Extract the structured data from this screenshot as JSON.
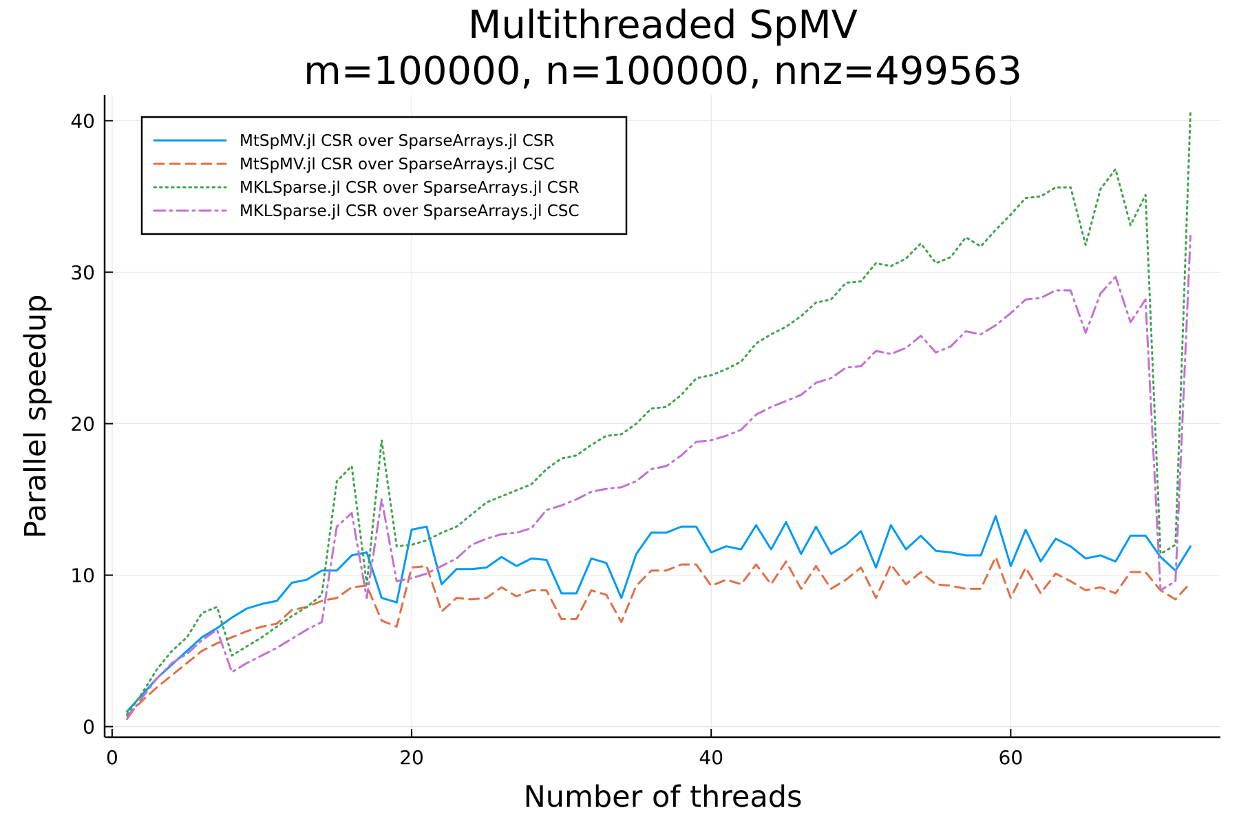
{
  "chart_data": {
    "type": "line",
    "title": "Multithreaded SpMV",
    "subtitle": "m=100000, n=100000, nnz=499563",
    "xlabel": "Number of threads",
    "ylabel": "Parallel speedup",
    "xlim": [
      -0.5,
      74
    ],
    "ylim": [
      -0.7,
      41.7
    ],
    "xticks": [
      0,
      20,
      40,
      60
    ],
    "yticks": [
      0,
      10,
      20,
      30,
      40
    ],
    "grid": true,
    "legend_position": "top-left",
    "x": [
      1,
      2,
      3,
      4,
      5,
      6,
      7,
      8,
      9,
      10,
      11,
      12,
      13,
      14,
      15,
      16,
      17,
      18,
      19,
      20,
      21,
      22,
      23,
      24,
      25,
      26,
      27,
      28,
      29,
      30,
      31,
      32,
      33,
      34,
      35,
      36,
      37,
      38,
      39,
      40,
      41,
      42,
      43,
      44,
      45,
      46,
      47,
      48,
      49,
      50,
      51,
      52,
      53,
      54,
      55,
      56,
      57,
      58,
      59,
      60,
      61,
      62,
      63,
      64,
      65,
      66,
      67,
      68,
      69,
      70,
      71,
      72
    ],
    "series": [
      {
        "name": "MtSpMV.jl CSR over SparseArrays.jl CSR",
        "color": "#009af9",
        "dash": "solid",
        "values": [
          1.0,
          2.1,
          3.2,
          4.1,
          5.0,
          5.9,
          6.5,
          7.2,
          7.8,
          8.1,
          8.3,
          9.5,
          9.7,
          10.3,
          10.3,
          11.3,
          11.5,
          8.5,
          8.2,
          13.0,
          13.2,
          9.4,
          10.4,
          10.4,
          10.5,
          11.2,
          10.6,
          11.1,
          11.0,
          8.8,
          8.8,
          11.1,
          10.8,
          8.5,
          11.4,
          12.8,
          12.8,
          13.2,
          13.2,
          11.5,
          11.9,
          11.7,
          13.3,
          11.7,
          13.5,
          11.4,
          13.2,
          11.4,
          12.0,
          12.9,
          10.5,
          13.3,
          11.7,
          12.6,
          11.6,
          11.5,
          11.3,
          11.3,
          13.9,
          10.6,
          13.0,
          10.9,
          12.4,
          11.9,
          11.1,
          11.3,
          10.9,
          12.6,
          12.6,
          11.2,
          10.3,
          11.9
        ]
      },
      {
        "name": "MtSpMV.jl CSR over SparseArrays.jl CSC",
        "color": "#e26f46",
        "dash": "dashed",
        "values": [
          0.7,
          1.7,
          2.6,
          3.4,
          4.2,
          5.0,
          5.5,
          5.9,
          6.3,
          6.6,
          6.8,
          7.7,
          7.9,
          8.3,
          8.5,
          9.2,
          9.3,
          7.0,
          6.6,
          10.5,
          10.6,
          7.6,
          8.5,
          8.4,
          8.5,
          9.2,
          8.6,
          9.0,
          9.0,
          7.1,
          7.1,
          9.0,
          8.7,
          6.9,
          9.3,
          10.3,
          10.3,
          10.7,
          10.7,
          9.3,
          9.7,
          9.4,
          10.7,
          9.4,
          10.9,
          9.1,
          10.6,
          9.1,
          9.7,
          10.5,
          8.5,
          10.7,
          9.4,
          10.2,
          9.4,
          9.3,
          9.1,
          9.1,
          11.2,
          8.5,
          10.5,
          8.8,
          10.1,
          9.6,
          9.0,
          9.2,
          8.8,
          10.2,
          10.2,
          9.0,
          8.4,
          9.5
        ]
      },
      {
        "name": "MKLSparse.jl CSR over SparseArrays.jl CSR",
        "color": "#3da44d",
        "dash": "dotted",
        "values": [
          0.8,
          2.2,
          3.8,
          5.0,
          5.9,
          7.5,
          7.9,
          4.7,
          5.3,
          5.9,
          6.6,
          7.3,
          7.9,
          8.7,
          16.2,
          17.2,
          9.4,
          18.9,
          11.9,
          12.0,
          12.3,
          12.8,
          13.2,
          14.0,
          14.8,
          15.2,
          15.6,
          16.0,
          17.0,
          17.7,
          17.9,
          18.6,
          19.2,
          19.3,
          20.0,
          21.0,
          21.1,
          21.9,
          23.0,
          23.2,
          23.6,
          24.1,
          25.3,
          25.9,
          26.4,
          27.1,
          28.0,
          28.2,
          29.3,
          29.4,
          30.6,
          30.4,
          30.9,
          31.9,
          30.6,
          31.0,
          32.3,
          31.7,
          32.8,
          33.8,
          34.9,
          35.0,
          35.6,
          35.6,
          31.8,
          35.5,
          36.8,
          33.1,
          35.1,
          11.4,
          12.0,
          40.6
        ]
      },
      {
        "name": "MKLSparse.jl CSR over SparseArrays.jl CSC",
        "color": "#c271d2",
        "dash": "dashdot",
        "values": [
          0.5,
          1.9,
          3.2,
          4.2,
          4.8,
          5.7,
          6.4,
          3.6,
          4.2,
          4.7,
          5.2,
          5.8,
          6.4,
          6.9,
          13.2,
          14.1,
          8.5,
          15.0,
          9.6,
          9.8,
          10.1,
          10.6,
          11.1,
          12.0,
          12.4,
          12.7,
          12.8,
          13.1,
          14.3,
          14.6,
          15.0,
          15.5,
          15.7,
          15.8,
          16.2,
          17.0,
          17.2,
          17.9,
          18.8,
          18.9,
          19.2,
          19.6,
          20.6,
          21.1,
          21.5,
          21.9,
          22.7,
          23.0,
          23.7,
          23.8,
          24.8,
          24.6,
          25.0,
          25.8,
          24.7,
          25.1,
          26.1,
          25.9,
          26.5,
          27.3,
          28.2,
          28.3,
          28.8,
          28.8,
          26.0,
          28.6,
          29.7,
          26.7,
          28.2,
          9.0,
          9.6,
          32.4
        ]
      }
    ]
  }
}
